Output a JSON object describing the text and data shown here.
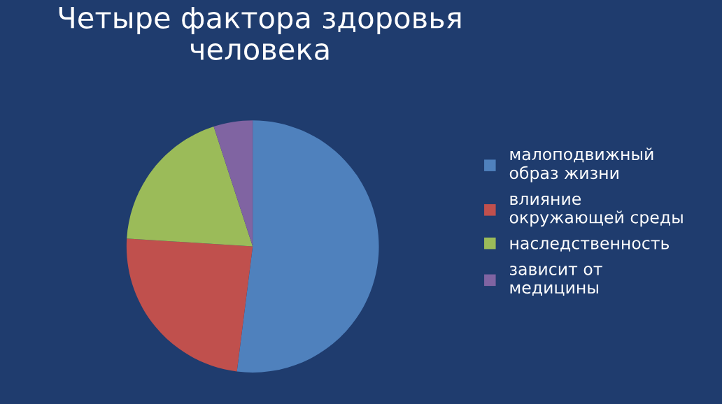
{
  "chart_data": {
    "type": "pie",
    "title": "Четыре фактора здоровья\nчеловека",
    "categories": [
      "малоподвижный\nобраз жизни",
      "влияние\nокружающей среды",
      "наследственность",
      "зависит от\nмедицины"
    ],
    "values": [
      52,
      24,
      19,
      5
    ],
    "colors": [
      "#4f81bd",
      "#c0504d",
      "#9bbb59",
      "#8064a2"
    ],
    "legend": "right"
  }
}
